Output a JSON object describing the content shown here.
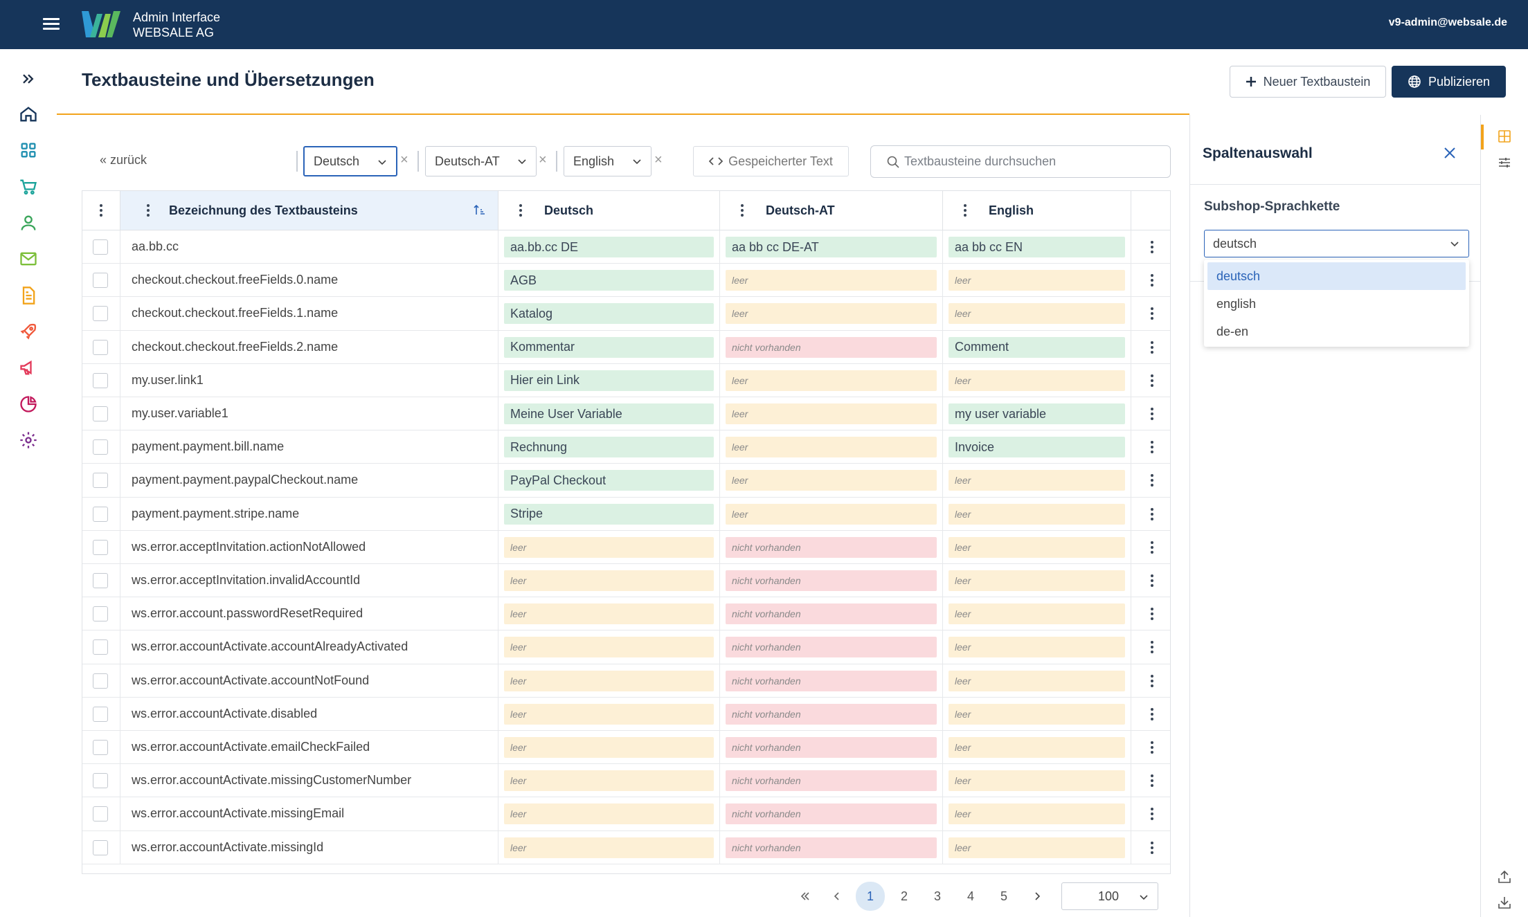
{
  "app": {
    "title_line1": "Admin Interface",
    "title_line2": "WEBSALE AG",
    "user_email": "v9-admin@websale.de"
  },
  "colors": {
    "navy": "#16355a",
    "accent_orange": "#f2a31b",
    "ok_green": "#dbf1e3",
    "empty_yellow": "#fdf0d6",
    "missing_red": "#fadadd",
    "primary_blue": "#2a63b8"
  },
  "sidebar": {
    "items": [
      {
        "icon": "chevrons-right-icon",
        "label": "expand"
      },
      {
        "icon": "home-icon",
        "label": "home"
      },
      {
        "icon": "dashboard-grid-icon",
        "label": "dashboard"
      },
      {
        "icon": "shopping-cart-icon",
        "label": "cart"
      },
      {
        "icon": "user-icon",
        "label": "user"
      },
      {
        "icon": "mail-icon",
        "label": "mail"
      },
      {
        "icon": "document-icon",
        "label": "document"
      },
      {
        "icon": "rocket-icon",
        "label": "rocket"
      },
      {
        "icon": "megaphone-icon",
        "label": "marketing"
      },
      {
        "icon": "pie-chart-icon",
        "label": "statistics"
      },
      {
        "icon": "gear-icon",
        "label": "settings"
      }
    ]
  },
  "header": {
    "page_title": "Textbausteine und Übersetzungen",
    "new_button": "Neuer Textbaustein",
    "publish_button": "Publizieren"
  },
  "filters": {
    "back": "« zurück",
    "languages": [
      "Deutsch",
      "Deutsch-AT",
      "English"
    ],
    "clear_symbol": "×",
    "saved_text_button": "Gespeicherter Text",
    "search_placeholder": "Textbausteine durchsuchen"
  },
  "table": {
    "columns": {
      "name": "Bezeichnung des Textbausteins",
      "de": "Deutsch",
      "de_at": "Deutsch-AT",
      "en": "English"
    },
    "rows": [
      {
        "name": "aa.bb.cc",
        "de": {
          "t": "aa.bb.cc DE",
          "s": "ok"
        },
        "de_at": {
          "t": "aa bb cc DE-AT",
          "s": "ok"
        },
        "en": {
          "t": "aa bb cc EN",
          "s": "ok"
        }
      },
      {
        "name": "checkout.checkout.freeFields.0.name",
        "de": {
          "t": "AGB",
          "s": "ok"
        },
        "de_at": {
          "t": "leer",
          "s": "empty"
        },
        "en": {
          "t": "leer",
          "s": "empty"
        }
      },
      {
        "name": "checkout.checkout.freeFields.1.name",
        "de": {
          "t": "Katalog",
          "s": "ok"
        },
        "de_at": {
          "t": "leer",
          "s": "empty"
        },
        "en": {
          "t": "leer",
          "s": "empty"
        }
      },
      {
        "name": "checkout.checkout.freeFields.2.name",
        "de": {
          "t": "Kommentar",
          "s": "ok"
        },
        "de_at": {
          "t": "nicht vorhanden",
          "s": "missing"
        },
        "en": {
          "t": "Comment",
          "s": "ok"
        }
      },
      {
        "name": "my.user.link1",
        "de": {
          "t": "Hier ein Link",
          "s": "ok"
        },
        "de_at": {
          "t": "leer",
          "s": "empty"
        },
        "en": {
          "t": "leer",
          "s": "empty"
        }
      },
      {
        "name": "my.user.variable1",
        "de": {
          "t": "Meine User Variable",
          "s": "ok"
        },
        "de_at": {
          "t": "leer",
          "s": "empty"
        },
        "en": {
          "t": "my user variable",
          "s": "ok"
        }
      },
      {
        "name": "payment.payment.bill.name",
        "de": {
          "t": "Rechnung",
          "s": "ok"
        },
        "de_at": {
          "t": "leer",
          "s": "empty"
        },
        "en": {
          "t": "Invoice",
          "s": "ok"
        }
      },
      {
        "name": "payment.payment.paypalCheckout.name",
        "de": {
          "t": "PayPal Checkout",
          "s": "ok"
        },
        "de_at": {
          "t": "leer",
          "s": "empty"
        },
        "en": {
          "t": "leer",
          "s": "empty"
        }
      },
      {
        "name": "payment.payment.stripe.name",
        "de": {
          "t": "Stripe",
          "s": "ok"
        },
        "de_at": {
          "t": "leer",
          "s": "empty"
        },
        "en": {
          "t": "leer",
          "s": "empty"
        }
      },
      {
        "name": "ws.error.acceptInvitation.actionNotAllowed",
        "de": {
          "t": "leer",
          "s": "empty"
        },
        "de_at": {
          "t": "nicht vorhanden",
          "s": "missing"
        },
        "en": {
          "t": "leer",
          "s": "empty"
        }
      },
      {
        "name": "ws.error.acceptInvitation.invalidAccountId",
        "de": {
          "t": "leer",
          "s": "empty"
        },
        "de_at": {
          "t": "nicht vorhanden",
          "s": "missing"
        },
        "en": {
          "t": "leer",
          "s": "empty"
        }
      },
      {
        "name": "ws.error.account.passwordResetRequired",
        "de": {
          "t": "leer",
          "s": "empty"
        },
        "de_at": {
          "t": "nicht vorhanden",
          "s": "missing"
        },
        "en": {
          "t": "leer",
          "s": "empty"
        }
      },
      {
        "name": "ws.error.accountActivate.accountAlreadyActivated",
        "de": {
          "t": "leer",
          "s": "empty"
        },
        "de_at": {
          "t": "nicht vorhanden",
          "s": "missing"
        },
        "en": {
          "t": "leer",
          "s": "empty"
        }
      },
      {
        "name": "ws.error.accountActivate.accountNotFound",
        "de": {
          "t": "leer",
          "s": "empty"
        },
        "de_at": {
          "t": "nicht vorhanden",
          "s": "missing"
        },
        "en": {
          "t": "leer",
          "s": "empty"
        }
      },
      {
        "name": "ws.error.accountActivate.disabled",
        "de": {
          "t": "leer",
          "s": "empty"
        },
        "de_at": {
          "t": "nicht vorhanden",
          "s": "missing"
        },
        "en": {
          "t": "leer",
          "s": "empty"
        }
      },
      {
        "name": "ws.error.accountActivate.emailCheckFailed",
        "de": {
          "t": "leer",
          "s": "empty"
        },
        "de_at": {
          "t": "nicht vorhanden",
          "s": "missing"
        },
        "en": {
          "t": "leer",
          "s": "empty"
        }
      },
      {
        "name": "ws.error.accountActivate.missingCustomerNumber",
        "de": {
          "t": "leer",
          "s": "empty"
        },
        "de_at": {
          "t": "nicht vorhanden",
          "s": "missing"
        },
        "en": {
          "t": "leer",
          "s": "empty"
        }
      },
      {
        "name": "ws.error.accountActivate.missingEmail",
        "de": {
          "t": "leer",
          "s": "empty"
        },
        "de_at": {
          "t": "nicht vorhanden",
          "s": "missing"
        },
        "en": {
          "t": "leer",
          "s": "empty"
        }
      },
      {
        "name": "ws.error.accountActivate.missingId",
        "de": {
          "t": "leer",
          "s": "empty"
        },
        "de_at": {
          "t": "nicht vorhanden",
          "s": "missing"
        },
        "en": {
          "t": "leer",
          "s": "empty"
        }
      }
    ]
  },
  "pagination": {
    "pages": [
      "1",
      "2",
      "3",
      "4",
      "5"
    ],
    "current": "1",
    "per_page": "100"
  },
  "panel": {
    "title": "Spaltenauswahl",
    "subtitle": "Subshop-Sprachkette",
    "selected": "deutsch",
    "options": [
      "deutsch",
      "english",
      "de-en"
    ]
  }
}
